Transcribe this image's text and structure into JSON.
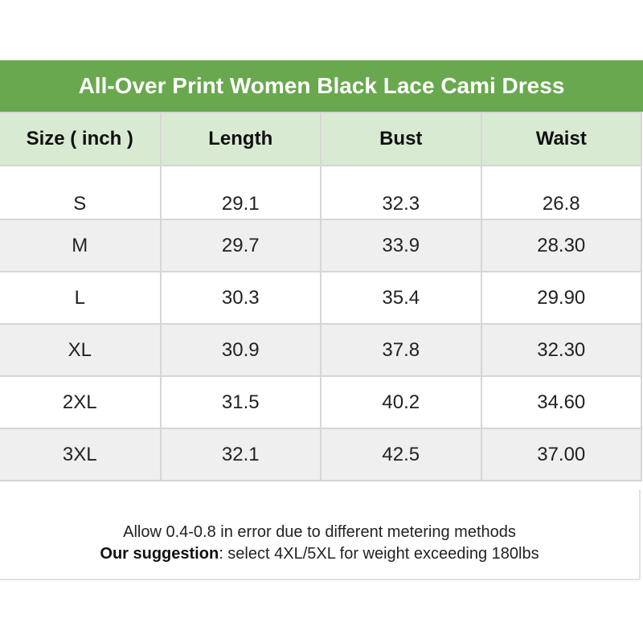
{
  "title": "All-Over Print Women Black Lace Cami Dress",
  "headers": [
    "Size ( inch )",
    "Length",
    "Bust",
    "Waist"
  ],
  "rows": [
    [
      "S",
      "29.1",
      "32.3",
      "26.8"
    ],
    [
      "M",
      "29.7",
      "33.9",
      "28.30"
    ],
    [
      "L",
      "30.3",
      "35.4",
      "29.90"
    ],
    [
      "XL",
      "30.9",
      "37.8",
      "32.30"
    ],
    [
      "2XL",
      "31.5",
      "40.2",
      "34.60"
    ],
    [
      "3XL",
      "32.1",
      "42.5",
      "37.00"
    ]
  ],
  "footer": {
    "line1": "Allow 0.4-0.8 in error due to different metering methods",
    "suggestion_label": "Our suggestion",
    "suggestion_text": ": select 4XL/5XL for weight exceeding 180lbs"
  },
  "colors": {
    "title_bg": "#6aa84f",
    "header_bg": "#d9ead3",
    "alt_row_bg": "#efefef"
  }
}
